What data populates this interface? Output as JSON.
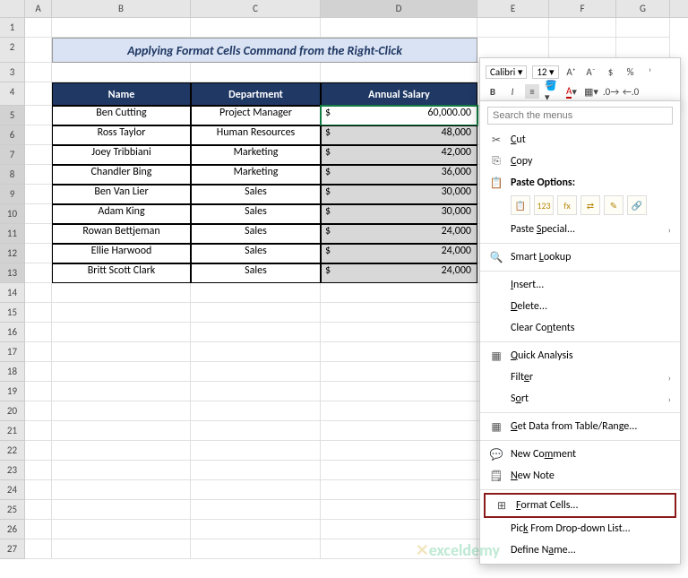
{
  "columns": [
    "A",
    "B",
    "C",
    "D",
    "E",
    "F",
    "G"
  ],
  "selected_col": "D",
  "row_count": 27,
  "selected_rows_start": 5,
  "selected_rows_end": 13,
  "title": "Applying Format Cells Command from the Right-Click",
  "headers": {
    "name": "Name",
    "dept": "Department",
    "salary": "Annual Salary"
  },
  "data": [
    {
      "name": "Ben Cutting",
      "dept": "Project Manager",
      "salary": "60,000.00"
    },
    {
      "name": "Ross Taylor",
      "dept": "Human Resources",
      "salary": "48,000"
    },
    {
      "name": "Joey Tribbiani",
      "dept": "Marketing",
      "salary": "42,000"
    },
    {
      "name": "Chandler Bing",
      "dept": "Marketing",
      "salary": "36,000"
    },
    {
      "name": "Ben Van Lier",
      "dept": "Sales",
      "salary": "30,000"
    },
    {
      "name": "Adam King",
      "dept": "Sales",
      "salary": "30,000"
    },
    {
      "name": "Rowan Bettjeman",
      "dept": "Sales",
      "salary": "24,000"
    },
    {
      "name": "Ellie Harwood",
      "dept": "Sales",
      "salary": "24,000"
    },
    {
      "name": "Britt Scott Clark",
      "dept": "Sales",
      "salary": "24,000"
    }
  ],
  "currency": "$",
  "active_row": 0,
  "mini_toolbar": {
    "font": "Calibri",
    "size": "12",
    "icons_row1": [
      "A⁺",
      "A⁻",
      "$",
      "%",
      "ᵎ"
    ],
    "bold": "B",
    "italic": "I",
    "align": "≡"
  },
  "context_menu": {
    "search_placeholder": "Search the menus",
    "cut": "Cut",
    "copy": "Copy",
    "paste_options": "Paste Options:",
    "paste_special": "Paste Special...",
    "smart_lookup": "Smart Lookup",
    "insert": "Insert...",
    "delete": "Delete...",
    "clear": "Clear Contents",
    "quick_analysis": "Quick Analysis",
    "filter": "Filter",
    "sort": "Sort",
    "get_data": "Get Data from Table/Range...",
    "new_comment": "New Comment",
    "new_note": "New Note",
    "format_cells": "Format Cells...",
    "pick_list": "Pick From Drop-down List...",
    "define_name": "Define Name...",
    "icons": {
      "cut": "✂",
      "copy": "⎘",
      "paste": "📋",
      "lookup": "🔍",
      "quick": "▦",
      "table": "▦",
      "comment": "💬",
      "note": "🗒",
      "format": "⊞"
    }
  },
  "watermark": "exceldemy",
  "colors": {
    "header_bg": "#1f3864",
    "title_bg": "#dae3f3",
    "highlight_border": "#8b1a1a",
    "selection_green": "#107c41"
  }
}
